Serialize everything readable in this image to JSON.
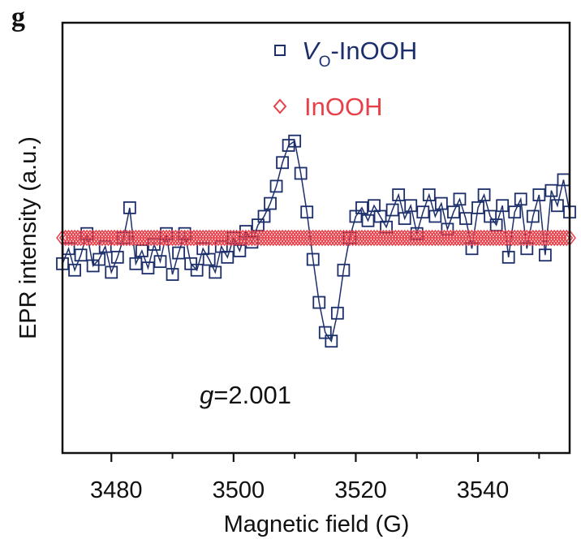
{
  "panel_label": "g",
  "chart_data": {
    "type": "scatter",
    "xlabel": "Magnetic field (G)",
    "ylabel": "EPR intensity (a.u.)",
    "xlim": [
      3472,
      3555
    ],
    "ylim": [
      -1,
      1
    ],
    "xticks": [
      3480,
      3500,
      3520,
      3540
    ],
    "xtick_labels": [
      "3480",
      "3500",
      "3520",
      "3540"
    ],
    "minor_xticks": [
      3490,
      3510,
      3530,
      3550
    ],
    "y_tick_labels_shown": false,
    "grid": false,
    "legend_position": "top-center",
    "annotation": {
      "italic": "g",
      "text": "=2.001"
    },
    "x": [
      3472,
      3473,
      3474,
      3475,
      3476,
      3477,
      3478,
      3479,
      3480,
      3481,
      3482,
      3483,
      3484,
      3485,
      3486,
      3487,
      3488,
      3489,
      3490,
      3491,
      3492,
      3493,
      3494,
      3495,
      3496,
      3497,
      3498,
      3499,
      3500,
      3501,
      3502,
      3503,
      3504,
      3505,
      3506,
      3507,
      3508,
      3509,
      3510,
      3511,
      3512,
      3513,
      3514,
      3515,
      3516,
      3517,
      3518,
      3519,
      3520,
      3521,
      3522,
      3523,
      3524,
      3525,
      3526,
      3527,
      3528,
      3529,
      3530,
      3531,
      3532,
      3533,
      3534,
      3535,
      3536,
      3537,
      3538,
      3539,
      3540,
      3541,
      3542,
      3543,
      3544,
      3545,
      3546,
      3547,
      3548,
      3549,
      3550,
      3551,
      3552,
      3553,
      3554,
      3555
    ],
    "series": [
      {
        "name": "Vo-InOOH",
        "name_parts": {
          "main": "V",
          "sub": "O",
          "rest": "-InOOH"
        },
        "marker": "square",
        "color": "#1c2f6b",
        "values": [
          -0.12,
          -0.05,
          -0.15,
          -0.08,
          0.02,
          -0.13,
          -0.1,
          -0.04,
          -0.16,
          -0.09,
          0.0,
          0.14,
          -0.12,
          -0.06,
          -0.14,
          -0.03,
          -0.11,
          0.02,
          -0.17,
          -0.07,
          0.02,
          -0.12,
          -0.15,
          -0.05,
          -0.1,
          -0.16,
          -0.04,
          -0.09,
          0.0,
          -0.06,
          0.03,
          -0.02,
          0.06,
          0.1,
          0.16,
          0.24,
          0.35,
          0.43,
          0.45,
          0.3,
          0.12,
          -0.1,
          -0.3,
          -0.44,
          -0.48,
          -0.35,
          -0.15,
          0.0,
          0.1,
          0.14,
          0.08,
          0.15,
          0.1,
          0.05,
          0.13,
          0.2,
          0.09,
          0.15,
          0.02,
          0.12,
          0.2,
          0.1,
          0.16,
          0.04,
          0.12,
          0.18,
          0.09,
          -0.05,
          0.14,
          0.2,
          0.1,
          0.06,
          0.15,
          -0.09,
          0.12,
          0.18,
          -0.05,
          0.1,
          0.2,
          -0.08,
          0.22,
          0.15,
          0.27,
          0.12
        ]
      },
      {
        "name": "InOOH",
        "marker": "diamond",
        "color": "#e8404a",
        "values": [
          0,
          0,
          0,
          0,
          0,
          0,
          0,
          0,
          0,
          0,
          0,
          0,
          0,
          0,
          0,
          0,
          0,
          0,
          0,
          0,
          0,
          0,
          0,
          0,
          0,
          0,
          0,
          0,
          0,
          0,
          0,
          0,
          0,
          0,
          0,
          0,
          0,
          0,
          0,
          0,
          0,
          0,
          0,
          0,
          0,
          0,
          0,
          0,
          0,
          0,
          0,
          0,
          0,
          0,
          0,
          0,
          0,
          0,
          0,
          0,
          0,
          0,
          0,
          0,
          0,
          0,
          0,
          0,
          0,
          0,
          0,
          0,
          0,
          0,
          0,
          0,
          0,
          0,
          0,
          0,
          0,
          0,
          0,
          0
        ]
      }
    ]
  }
}
